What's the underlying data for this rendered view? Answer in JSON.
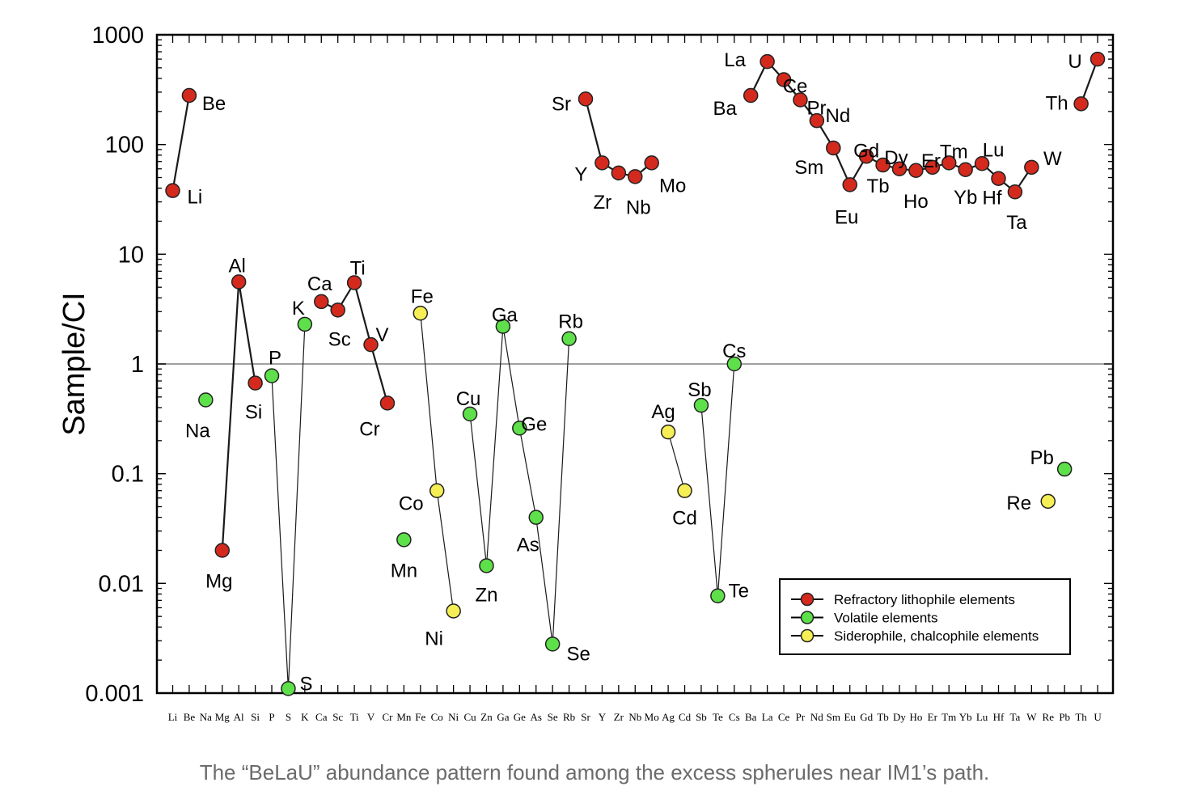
{
  "caption": "The “BeLaU” abundance pattern found among the excess spherules near IM1’s path.",
  "chart_data": {
    "type": "line",
    "ylabel": "Sample/CI",
    "yscale": "log",
    "ylim": [
      0.001,
      1000
    ],
    "yticks": [
      {
        "value": 1000,
        "label": "1000"
      },
      {
        "value": 100,
        "label": "100"
      },
      {
        "value": 10,
        "label": "10"
      },
      {
        "value": 1,
        "label": "1"
      },
      {
        "value": 0.1,
        "label": "0.1"
      },
      {
        "value": 0.01,
        "label": "0.01"
      },
      {
        "value": 0.001,
        "label": "0.001"
      }
    ],
    "reference_line": 1,
    "categories": [
      "Li",
      "Be",
      "Na",
      "Mg",
      "Al",
      "Si",
      "P",
      "S",
      "K",
      "Ca",
      "Sc",
      "Ti",
      "V",
      "Cr",
      "Mn",
      "Fe",
      "Co",
      "Ni",
      "Cu",
      "Zn",
      "Ga",
      "Ge",
      "As",
      "Se",
      "Rb",
      "Sr",
      "Y",
      "Zr",
      "Nb",
      "Mo",
      "Ag",
      "Cd",
      "Sb",
      "Te",
      "Cs",
      "Ba",
      "La",
      "Ce",
      "Pr",
      "Nd",
      "Sm",
      "Eu",
      "Gd",
      "Tb",
      "Dy",
      "Ho",
      "Er",
      "Tm",
      "Yb",
      "Lu",
      "Hf",
      "Ta",
      "W",
      "Re",
      "Pb",
      "Th",
      "U"
    ],
    "points": [
      {
        "el": "Li",
        "v": 38,
        "g": "refractory",
        "label": "Li"
      },
      {
        "el": "Be",
        "v": 280,
        "g": "refractory",
        "label": "Be"
      },
      {
        "el": "Na",
        "v": 0.47,
        "g": "volatile",
        "label": "Na"
      },
      {
        "el": "Mg",
        "v": 0.02,
        "g": "refractory",
        "label": "Mg"
      },
      {
        "el": "Al",
        "v": 5.6,
        "g": "refractory",
        "label": "Al"
      },
      {
        "el": "Si",
        "v": 0.67,
        "g": "refractory",
        "label": "Si"
      },
      {
        "el": "P",
        "v": 0.78,
        "g": "volatile",
        "label": "P"
      },
      {
        "el": "S",
        "v": 0.0011,
        "g": "volatile",
        "label": "S"
      },
      {
        "el": "K",
        "v": 2.3,
        "g": "volatile",
        "label": "K"
      },
      {
        "el": "Ca",
        "v": 3.7,
        "g": "refractory",
        "label": "Ca"
      },
      {
        "el": "Sc",
        "v": 3.1,
        "g": "refractory",
        "label": "Sc"
      },
      {
        "el": "Ti",
        "v": 5.5,
        "g": "refractory",
        "label": "Ti"
      },
      {
        "el": "V",
        "v": 1.5,
        "g": "refractory",
        "label": "V"
      },
      {
        "el": "Cr",
        "v": 0.44,
        "g": "refractory",
        "label": "Cr"
      },
      {
        "el": "Mn",
        "v": 0.025,
        "g": "volatile",
        "label": "Mn"
      },
      {
        "el": "Fe",
        "v": 2.9,
        "g": "siderophile",
        "label": "Fe"
      },
      {
        "el": "Co",
        "v": 0.07,
        "g": "siderophile",
        "label": "Co"
      },
      {
        "el": "Ni",
        "v": 0.0056,
        "g": "siderophile",
        "label": "Ni"
      },
      {
        "el": "Cu",
        "v": 0.35,
        "g": "volatile",
        "label": "Cu"
      },
      {
        "el": "Zn",
        "v": 0.0145,
        "g": "volatile",
        "label": "Zn"
      },
      {
        "el": "Ga",
        "v": 2.2,
        "g": "volatile",
        "label": "Ga"
      },
      {
        "el": "Ge",
        "v": 0.26,
        "g": "volatile",
        "label": "Ge"
      },
      {
        "el": "As",
        "v": 0.04,
        "g": "volatile",
        "label": "As"
      },
      {
        "el": "Se",
        "v": 0.0028,
        "g": "volatile",
        "label": "Se"
      },
      {
        "el": "Rb",
        "v": 1.7,
        "g": "volatile",
        "label": "Rb"
      },
      {
        "el": "Sr",
        "v": 260,
        "g": "refractory",
        "label": "Sr"
      },
      {
        "el": "Y",
        "v": 68,
        "g": "refractory",
        "label": "Y"
      },
      {
        "el": "Zr",
        "v": 55,
        "g": "refractory",
        "label": "Zr"
      },
      {
        "el": "Nb",
        "v": 51,
        "g": "refractory",
        "label": "Nb"
      },
      {
        "el": "Mo",
        "v": 68,
        "g": "refractory",
        "label": "Mo"
      },
      {
        "el": "Ag",
        "v": 0.24,
        "g": "siderophile",
        "label": "Ag"
      },
      {
        "el": "Cd",
        "v": 0.07,
        "g": "siderophile",
        "label": "Cd"
      },
      {
        "el": "Sb",
        "v": 0.42,
        "g": "volatile",
        "label": "Sb"
      },
      {
        "el": "Te",
        "v": 0.0077,
        "g": "volatile",
        "label": "Te"
      },
      {
        "el": "Cs",
        "v": 1.0,
        "g": "volatile",
        "label": "Cs"
      },
      {
        "el": "Ba",
        "v": 280,
        "g": "refractory",
        "label": "Ba"
      },
      {
        "el": "La",
        "v": 570,
        "g": "refractory",
        "label": "La"
      },
      {
        "el": "Ce",
        "v": 390,
        "g": "refractory",
        "label": "Ce"
      },
      {
        "el": "Pr",
        "v": 255,
        "g": "refractory",
        "label": "Pr"
      },
      {
        "el": "Nd",
        "v": 165,
        "g": "refractory",
        "label": "Nd"
      },
      {
        "el": "Sm",
        "v": 93,
        "g": "refractory",
        "label": "Sm"
      },
      {
        "el": "Eu",
        "v": 43,
        "g": "refractory",
        "label": "Eu"
      },
      {
        "el": "Gd",
        "v": 78,
        "g": "refractory",
        "label": "Gd"
      },
      {
        "el": "Tb",
        "v": 65,
        "g": "refractory",
        "label": "Tb"
      },
      {
        "el": "Dy",
        "v": 60,
        "g": "refractory",
        "label": "Dy"
      },
      {
        "el": "Ho",
        "v": 58,
        "g": "refractory",
        "label": "Ho"
      },
      {
        "el": "Er",
        "v": 62,
        "g": "refractory",
        "label": "Er"
      },
      {
        "el": "Tm",
        "v": 68,
        "g": "refractory",
        "label": "Tm"
      },
      {
        "el": "Yb",
        "v": 59,
        "g": "refractory",
        "label": "Yb"
      },
      {
        "el": "Lu",
        "v": 67,
        "g": "refractory",
        "label": "Lu"
      },
      {
        "el": "Hf",
        "v": 49,
        "g": "refractory",
        "label": "Hf"
      },
      {
        "el": "Ta",
        "v": 37,
        "g": "refractory",
        "label": "Ta"
      },
      {
        "el": "W",
        "v": 62,
        "g": "refractory",
        "label": "W"
      },
      {
        "el": "Re",
        "v": 0.056,
        "g": "siderophile",
        "label": "Re"
      },
      {
        "el": "Pb",
        "v": 0.11,
        "g": "volatile",
        "label": "Pb"
      },
      {
        "el": "Th",
        "v": 235,
        "g": "refractory",
        "label": "Th"
      },
      {
        "el": "U",
        "v": 600,
        "g": "refractory",
        "label": "U"
      }
    ],
    "connected_segments": [
      [
        "Li",
        "Be"
      ],
      [
        "Mg",
        "Al",
        "Si"
      ],
      [
        "Ca",
        "Sc",
        "Ti",
        "V",
        "Cr"
      ],
      [
        "Sr",
        "Y",
        "Zr",
        "Nb",
        "Mo"
      ],
      [
        "Ba",
        "La",
        "Ce",
        "Pr",
        "Nd",
        "Sm",
        "Eu",
        "Gd",
        "Tb",
        "Dy",
        "Ho",
        "Er",
        "Tm",
        "Yb",
        "Lu",
        "Hf",
        "Ta",
        "W"
      ],
      [
        "Th",
        "U"
      ],
      [
        "P",
        "S",
        "K"
      ],
      [
        "Fe",
        "Co",
        "Ni"
      ],
      [
        "Cu",
        "Zn",
        "Ga",
        "Ge",
        "As",
        "Se",
        "Rb"
      ],
      [
        "Ag",
        "Cd"
      ],
      [
        "Sb",
        "Te",
        "Cs"
      ]
    ],
    "legend": {
      "placement": "bottom-right",
      "entries": [
        {
          "group": "refractory",
          "label": "Refractory lithophile elements",
          "color": "#d42a1e"
        },
        {
          "group": "volatile",
          "label": "Volatile elements",
          "color": "#5ee04a"
        },
        {
          "group": "siderophile",
          "label": "Siderophile, chalcophile elements",
          "color": "#f5ef55"
        }
      ]
    },
    "colors": {
      "refractory": "#d42a1e",
      "volatile": "#5ee04a",
      "siderophile": "#f5ef55",
      "axis": "#000000",
      "reference_line": "#808080"
    },
    "grid": false
  }
}
